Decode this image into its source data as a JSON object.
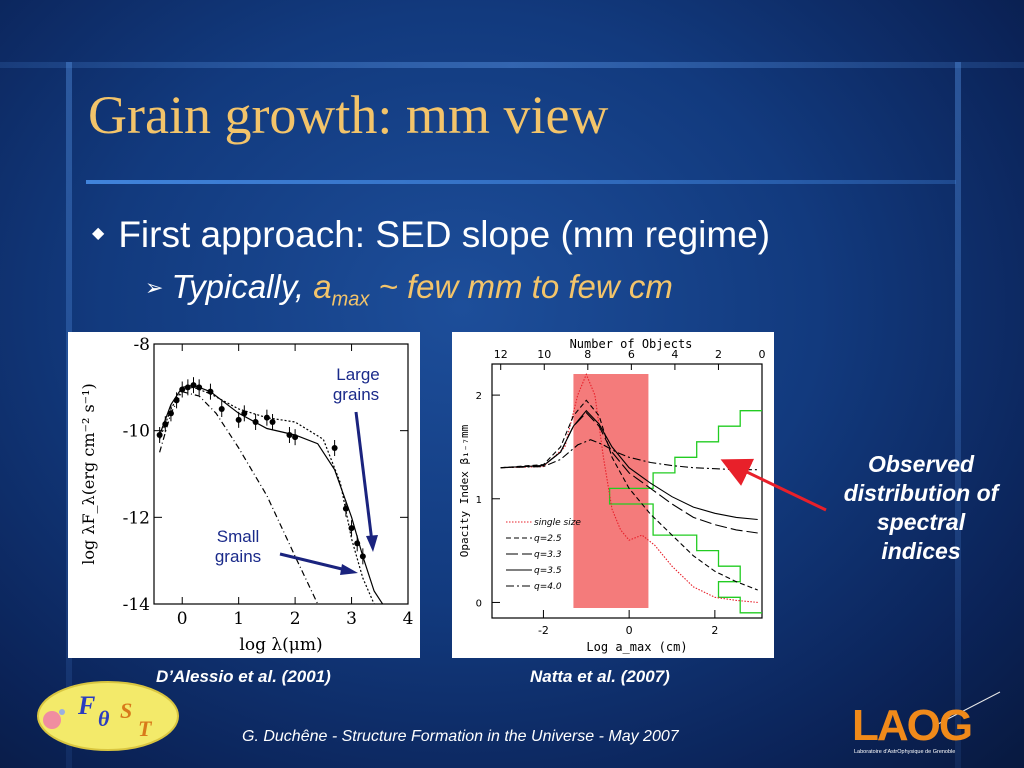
{
  "slide": {
    "title": "Grain growth: mm view",
    "bullet1": "First approach: SED slope (mm regime)",
    "bullet2_prefix": "Typically,",
    "bullet2_a": "a",
    "bullet2_sub": "max",
    "bullet2_suffix": " ~ few mm to few cm",
    "caption_left": "D’Alessio et al. (2001)",
    "caption_right": "Natta et al. (2007)",
    "observed_label": "Observed distribution of spectral indices",
    "footer": "G. Duchêne - Structure Formation in the Universe - May 2007",
    "logo_left_letters": [
      "F",
      "θ",
      "S",
      "T"
    ],
    "logo_right_text": "LAOG",
    "logo_right_subtext": "Laboratoire d'AstrOphysique de Grenoble",
    "colors": {
      "title": "#f3c46a",
      "text": "#ffffff",
      "arrow_red": "#e8202a",
      "arrow_navy": "#1a237e",
      "band": "#f47b7b",
      "histogram": "#22cc22"
    }
  },
  "chart_data": [
    {
      "type": "line",
      "xlabel": "log λ(μm)",
      "ylabel": "log λF_λ(erg cm⁻² s⁻¹)",
      "xlim": [
        -0.5,
        4
      ],
      "ylim": [
        -14,
        -8
      ],
      "xticks": [
        0,
        1,
        2,
        3,
        4
      ],
      "yticks": [
        -8,
        -10,
        -12,
        -14
      ],
      "series": [
        {
          "style": "solid",
          "x": [
            -0.4,
            -0.2,
            0,
            0.2,
            0.5,
            1,
            1.5,
            2,
            2.4,
            2.7,
            3,
            3.2,
            3.4,
            3.55
          ],
          "y": [
            -10.1,
            -9.4,
            -9.0,
            -8.95,
            -9.1,
            -9.6,
            -9.95,
            -10.1,
            -10.3,
            -10.9,
            -12.0,
            -12.9,
            -13.7,
            -14.0
          ]
        },
        {
          "style": "dotted",
          "x": [
            -0.4,
            -0.2,
            0,
            0.2,
            0.5,
            1,
            1.5,
            2,
            2.5,
            2.8,
            3.0,
            3.2,
            3.4
          ],
          "y": [
            -10.2,
            -9.5,
            -9.05,
            -9.0,
            -9.15,
            -9.5,
            -9.7,
            -9.8,
            -10.2,
            -11.2,
            -12.5,
            -13.4,
            -14.0
          ]
        },
        {
          "style": "dashdot",
          "x": [
            -0.4,
            -0.2,
            0,
            0.3,
            0.6,
            1,
            1.5,
            2,
            2.4
          ],
          "y": [
            -10.5,
            -9.6,
            -9.1,
            -9.2,
            -9.6,
            -10.4,
            -11.5,
            -12.9,
            -14.0
          ]
        }
      ],
      "points": {
        "x": [
          -0.4,
          -0.3,
          -0.2,
          -0.1,
          0,
          0.1,
          0.2,
          0.3,
          0.5,
          0.7,
          1.0,
          1.1,
          1.3,
          1.5,
          1.6,
          1.9,
          2.0,
          2.7,
          2.9,
          3.0,
          3.1,
          3.2
        ],
        "y": [
          -10.1,
          -9.85,
          -9.6,
          -9.3,
          -9.05,
          -9.0,
          -8.95,
          -9.0,
          -9.1,
          -9.5,
          -9.75,
          -9.6,
          -9.8,
          -9.7,
          -9.8,
          -10.1,
          -10.15,
          -10.4,
          -11.8,
          -12.25,
          -12.6,
          -12.9
        ]
      },
      "annotations": [
        "Large grains",
        "Small grains"
      ]
    },
    {
      "type": "line",
      "xlabel": "Log a_max (cm)",
      "ylabel": "Opacity Index β₁₋₇mm",
      "top_axis_label": "Number of Objects",
      "xlim": [
        -3.2,
        3.1
      ],
      "ylim": [
        -0.15,
        2.3
      ],
      "xticks": [
        -2,
        0,
        2
      ],
      "yticks": [
        0,
        1,
        2
      ],
      "top_ticks": [
        12,
        10,
        8,
        6,
        4,
        2,
        0
      ],
      "band": [
        -1.3,
        0.45
      ],
      "series": [
        {
          "name": "single size",
          "style": "dotted-red",
          "x": [
            -3,
            -2,
            -1.5,
            -1.2,
            -1.0,
            -0.8,
            -0.6,
            -0.4,
            -0.2,
            0,
            0.3,
            0.6,
            1,
            1.5,
            2,
            2.5,
            3
          ],
          "y": [
            1.3,
            1.31,
            1.5,
            2.0,
            2.2,
            2.0,
            1.4,
            0.9,
            0.7,
            0.6,
            0.65,
            0.55,
            0.35,
            0.15,
            0.05,
            0.02,
            0.0
          ]
        },
        {
          "name": "q=2.5",
          "style": "dashed",
          "x": [
            -3,
            -2,
            -1.6,
            -1.3,
            -1.0,
            -0.7,
            -0.4,
            0,
            0.5,
            1,
            1.5,
            2,
            2.5,
            3
          ],
          "y": [
            1.3,
            1.33,
            1.5,
            1.8,
            1.95,
            1.8,
            1.4,
            1.1,
            0.85,
            0.65,
            0.45,
            0.3,
            0.2,
            0.12
          ]
        },
        {
          "name": "q=3.3",
          "style": "longdash",
          "x": [
            -3,
            -2,
            -1.6,
            -1.3,
            -1.0,
            -0.7,
            -0.4,
            0,
            0.5,
            1,
            1.5,
            2,
            2.5,
            3
          ],
          "y": [
            1.3,
            1.32,
            1.45,
            1.7,
            1.83,
            1.7,
            1.45,
            1.25,
            1.1,
            0.95,
            0.82,
            0.75,
            0.7,
            0.67
          ]
        },
        {
          "name": "q=3.5",
          "style": "solid",
          "x": [
            -3,
            -2,
            -1.6,
            -1.3,
            -1.0,
            -0.7,
            -0.4,
            0,
            0.5,
            1,
            1.5,
            2,
            2.5,
            3
          ],
          "y": [
            1.3,
            1.32,
            1.45,
            1.7,
            1.85,
            1.72,
            1.5,
            1.3,
            1.15,
            1.02,
            0.92,
            0.86,
            0.82,
            0.8
          ]
        },
        {
          "name": "q=4.0",
          "style": "dashdash",
          "x": [
            -3,
            -2,
            -1.6,
            -1.2,
            -0.9,
            -0.6,
            -0.3,
            0,
            0.5,
            1,
            1.5,
            2,
            2.5,
            3
          ],
          "y": [
            1.3,
            1.31,
            1.38,
            1.52,
            1.57,
            1.52,
            1.45,
            1.4,
            1.35,
            1.32,
            1.3,
            1.29,
            1.28,
            1.28
          ]
        }
      ],
      "histogram": {
        "bin_width": 0.15,
        "bins": [
          {
            "beta_low": 1.7,
            "count": 1
          },
          {
            "beta_low": 1.55,
            "count": 2
          },
          {
            "beta_low": 1.4,
            "count": 3
          },
          {
            "beta_low": 1.25,
            "count": 4
          },
          {
            "beta_low": 1.1,
            "count": 5
          },
          {
            "beta_low": 0.95,
            "count": 7
          },
          {
            "beta_low": 0.8,
            "count": 5
          },
          {
            "beta_low": 0.65,
            "count": 5
          },
          {
            "beta_low": 0.5,
            "count": 3
          },
          {
            "beta_low": 0.35,
            "count": 2
          },
          {
            "beta_low": 0.2,
            "count": 1
          },
          {
            "beta_low": 0.05,
            "count": 2
          },
          {
            "beta_low": -0.1,
            "count": 1
          }
        ]
      }
    }
  ]
}
